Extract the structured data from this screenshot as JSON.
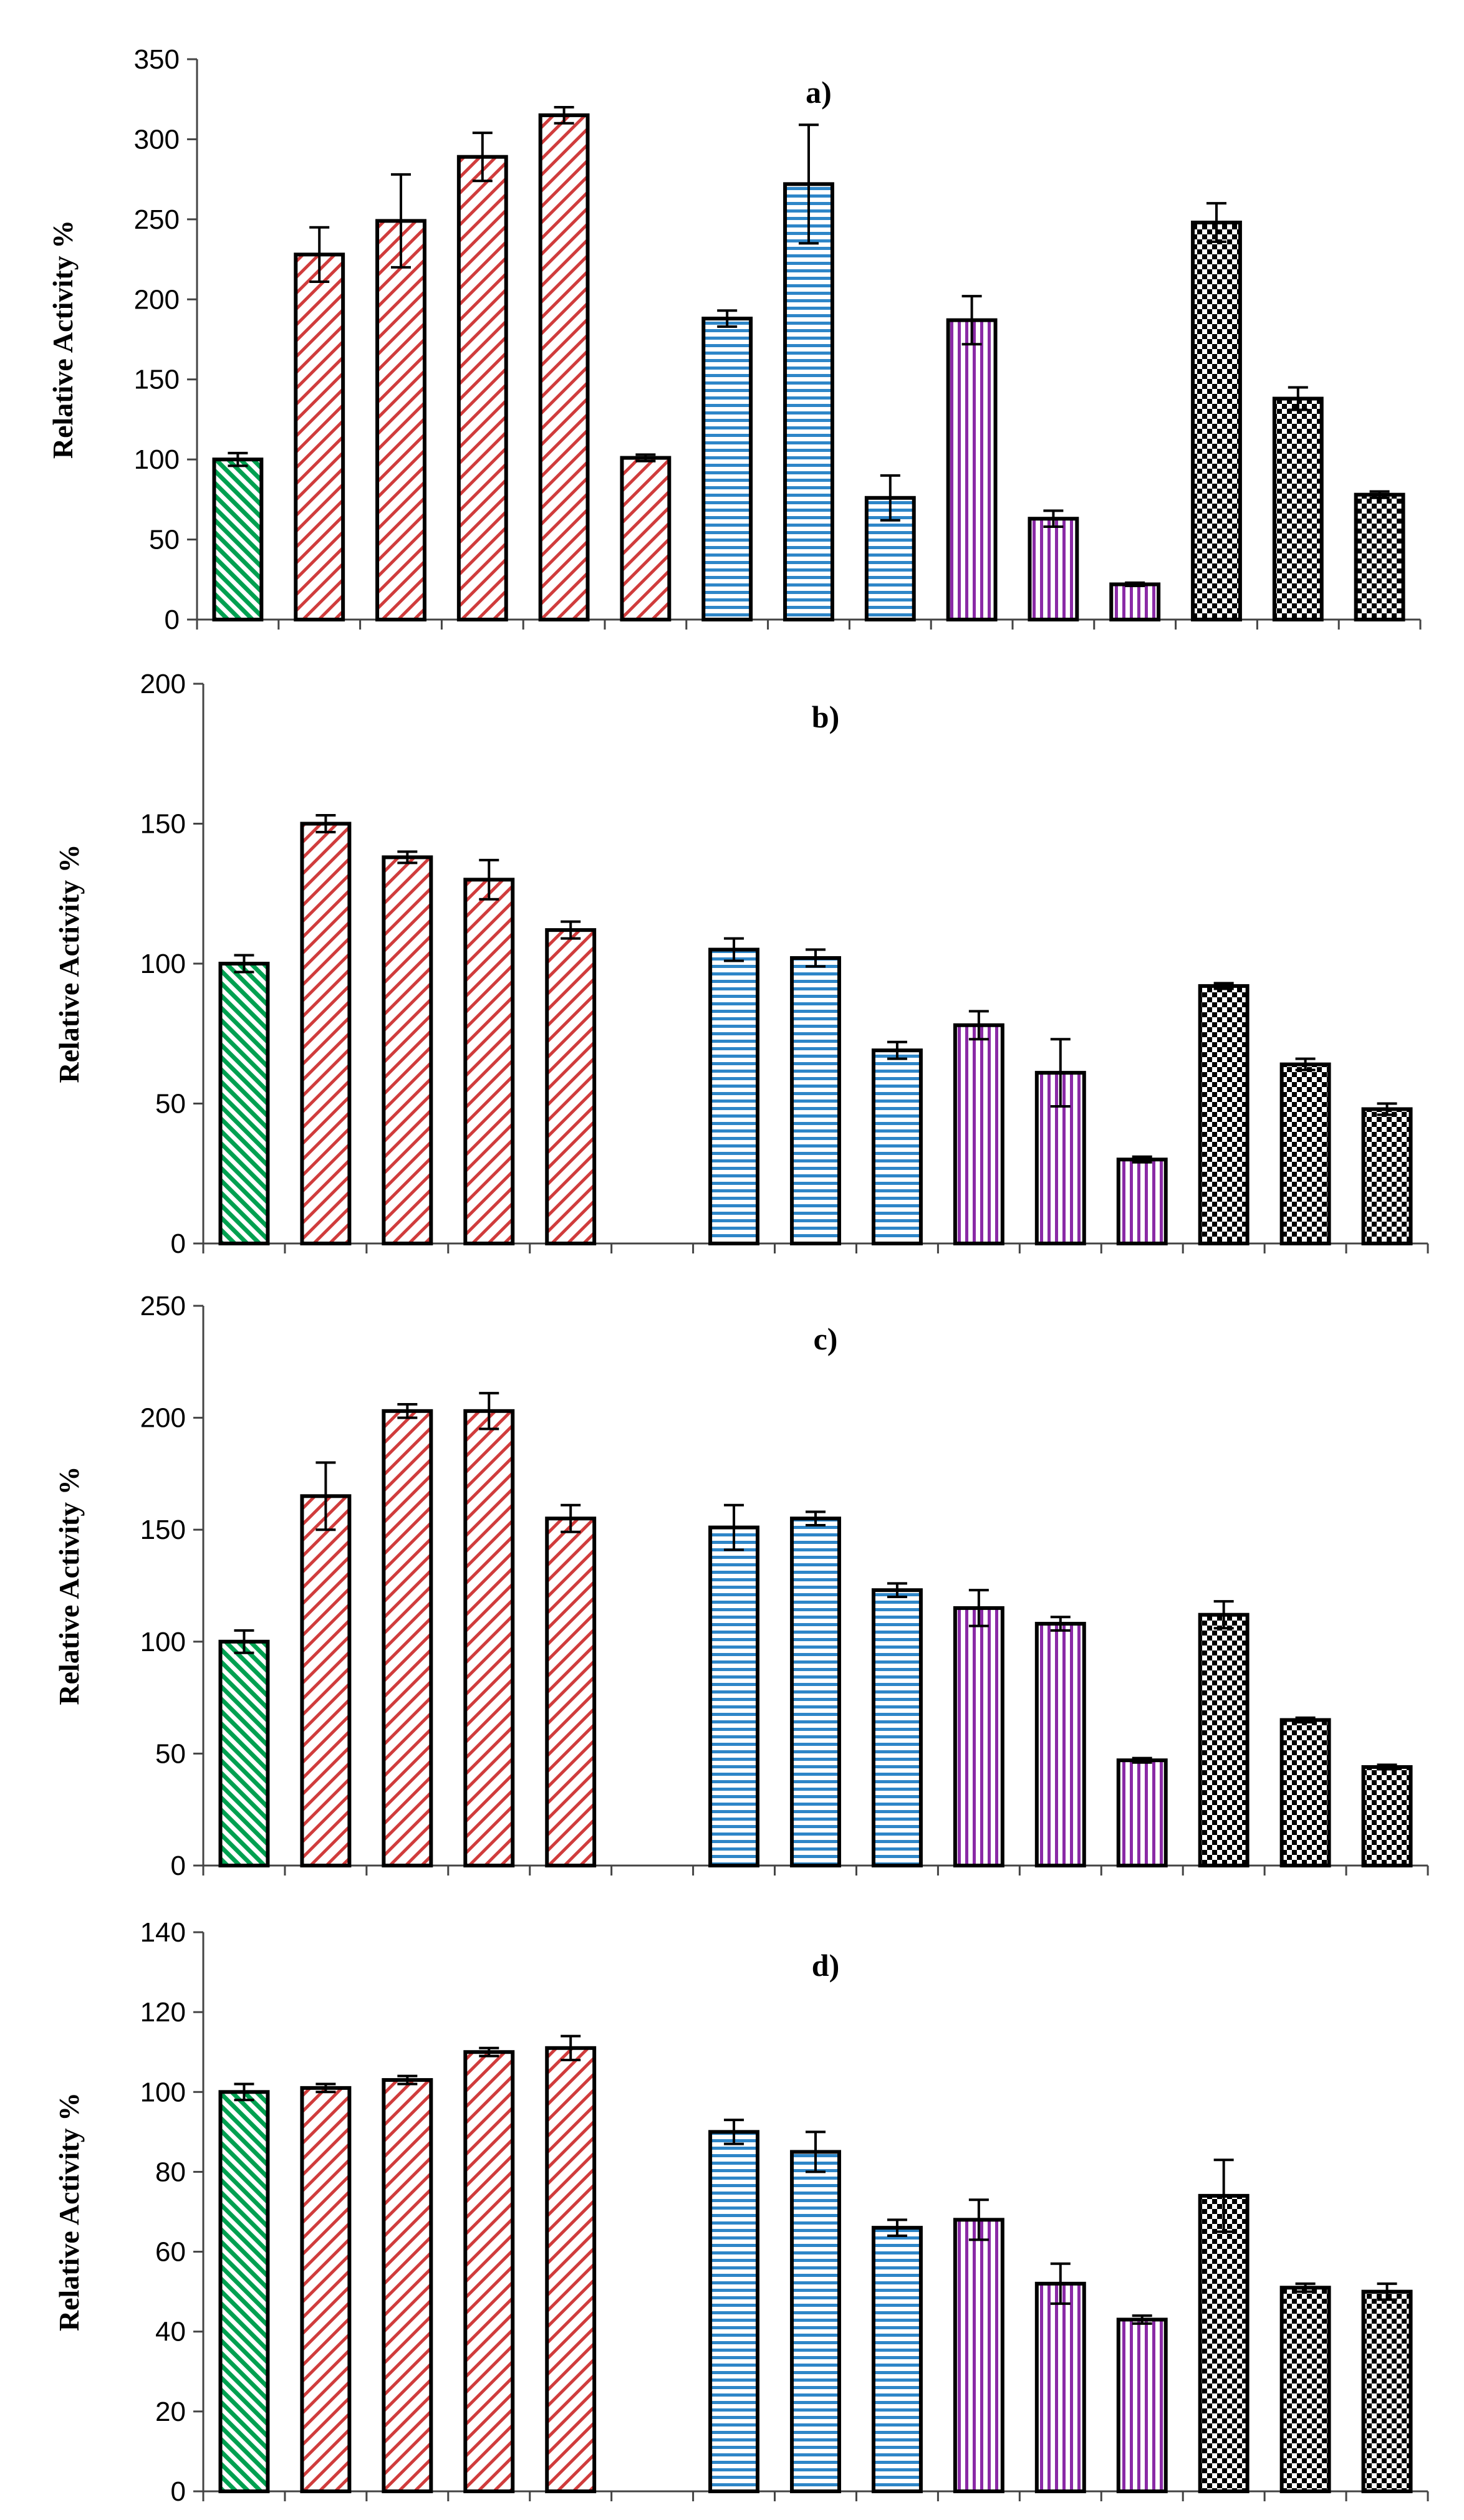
{
  "colors": {
    "green": "#00a050",
    "red": "#d03c3c",
    "blue": "#2e86c8",
    "purple": "#8a2aa6",
    "black": "#000000"
  },
  "bar_groups": [
    "green",
    "red",
    "red",
    "red",
    "red",
    "red",
    "blue",
    "blue",
    "blue",
    "purple",
    "purple",
    "purple",
    "black",
    "black",
    "black"
  ],
  "chart_data": [
    {
      "type": "bar",
      "panel_label": "a)",
      "ylabel": "Relative Activity %",
      "ylim": [
        0,
        350
      ],
      "yticks": [
        0,
        50,
        100,
        150,
        200,
        250,
        300,
        350
      ],
      "values": [
        100,
        228,
        249,
        289,
        315,
        101,
        188,
        272,
        76,
        187,
        63,
        22,
        248,
        138,
        78
      ],
      "errors": [
        4,
        17,
        29,
        15,
        5,
        2,
        5,
        37,
        14,
        15,
        5,
        1,
        12,
        7,
        2
      ]
    },
    {
      "type": "bar",
      "panel_label": "b)",
      "ylabel": "Relative Activity %",
      "ylim": [
        0,
        200
      ],
      "yticks": [
        0,
        50,
        100,
        150,
        200
      ],
      "values": [
        100,
        150,
        138,
        130,
        112,
        null,
        105,
        102,
        69,
        78,
        61,
        30,
        92,
        64,
        48
      ],
      "errors": [
        3,
        3,
        2,
        7,
        3,
        null,
        4,
        3,
        3,
        5,
        12,
        1,
        1,
        2,
        2
      ]
    },
    {
      "type": "bar",
      "panel_label": "c)",
      "ylabel": "Relative Activity %",
      "ylim": [
        0,
        250
      ],
      "yticks": [
        0,
        50,
        100,
        150,
        200,
        250
      ],
      "values": [
        100,
        165,
        203,
        203,
        155,
        null,
        151,
        155,
        123,
        115,
        108,
        47,
        112,
        65,
        44
      ],
      "errors": [
        5,
        15,
        3,
        8,
        6,
        null,
        10,
        3,
        3,
        8,
        3,
        1,
        6,
        1,
        1
      ]
    },
    {
      "type": "bar",
      "panel_label": "d)",
      "ylabel": "Relative Activity %",
      "ylim": [
        0,
        140
      ],
      "yticks": [
        0,
        20,
        40,
        60,
        80,
        100,
        120,
        140
      ],
      "values": [
        100,
        101,
        103,
        110,
        111,
        null,
        90,
        85,
        66,
        68,
        52,
        43,
        74,
        51,
        50
      ],
      "errors": [
        2,
        1,
        1,
        1,
        3,
        null,
        3,
        5,
        2,
        5,
        5,
        1,
        9,
        1,
        2
      ]
    }
  ]
}
